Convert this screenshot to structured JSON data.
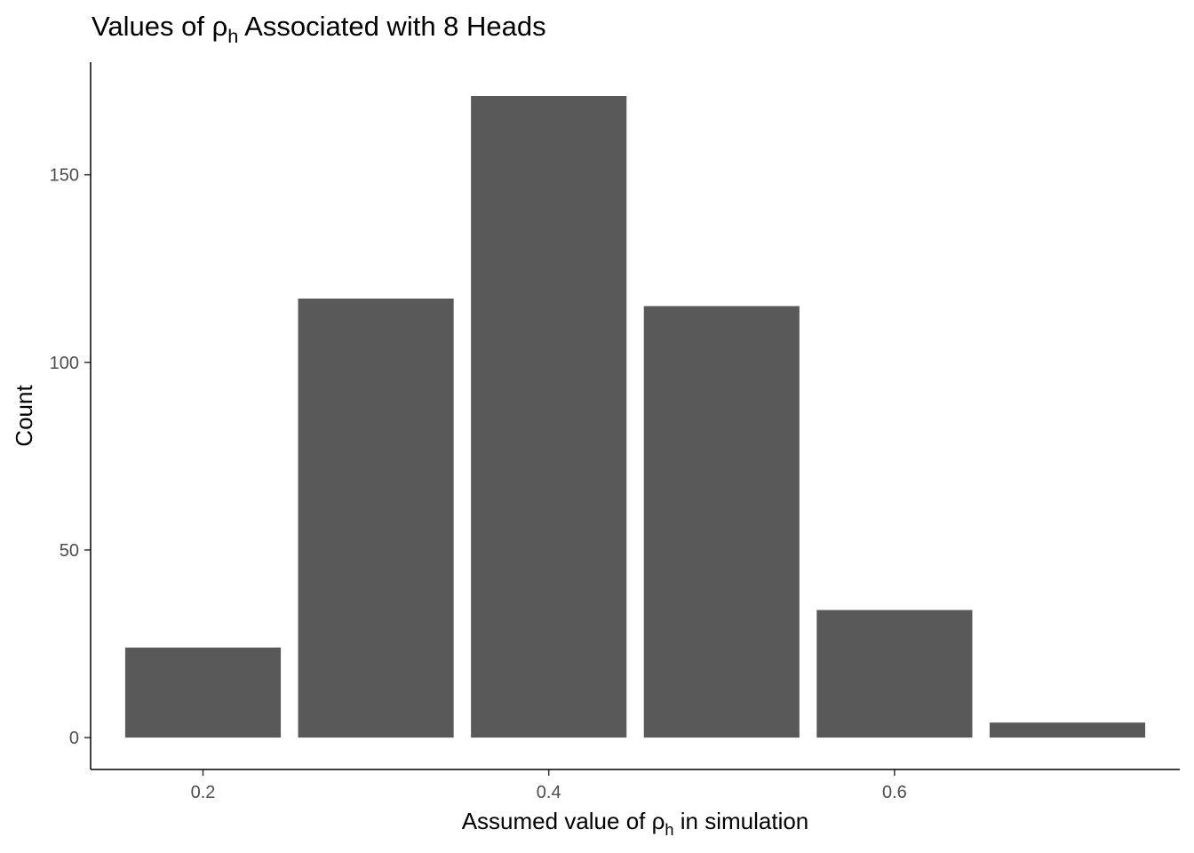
{
  "chart_data": {
    "type": "bar",
    "title": {
      "prefix": "Values of ",
      "symbol": "ρ",
      "subscript": "h",
      "suffix": " Associated with 8 Heads"
    },
    "xlabel": {
      "prefix": "Assumed value of ",
      "symbol": "ρ",
      "subscript": "h",
      "suffix": " in simulation"
    },
    "ylabel": "Count",
    "x": [
      0.2,
      0.3,
      0.4,
      0.5,
      0.6,
      0.7
    ],
    "values": [
      24,
      117,
      171,
      115,
      34,
      4
    ],
    "bar_width": 0.09,
    "xlim": [
      0.135,
      0.765
    ],
    "ylim": [
      -8.5,
      180
    ],
    "x_ticks": [
      0.2,
      0.4,
      0.6
    ],
    "x_tick_labels": [
      "0.2",
      "0.4",
      "0.6"
    ],
    "y_ticks": [
      0,
      50,
      100,
      150
    ],
    "y_tick_labels": [
      "0",
      "50",
      "100",
      "150"
    ],
    "bar_color": "#595959",
    "grid": false,
    "legend": "none"
  }
}
